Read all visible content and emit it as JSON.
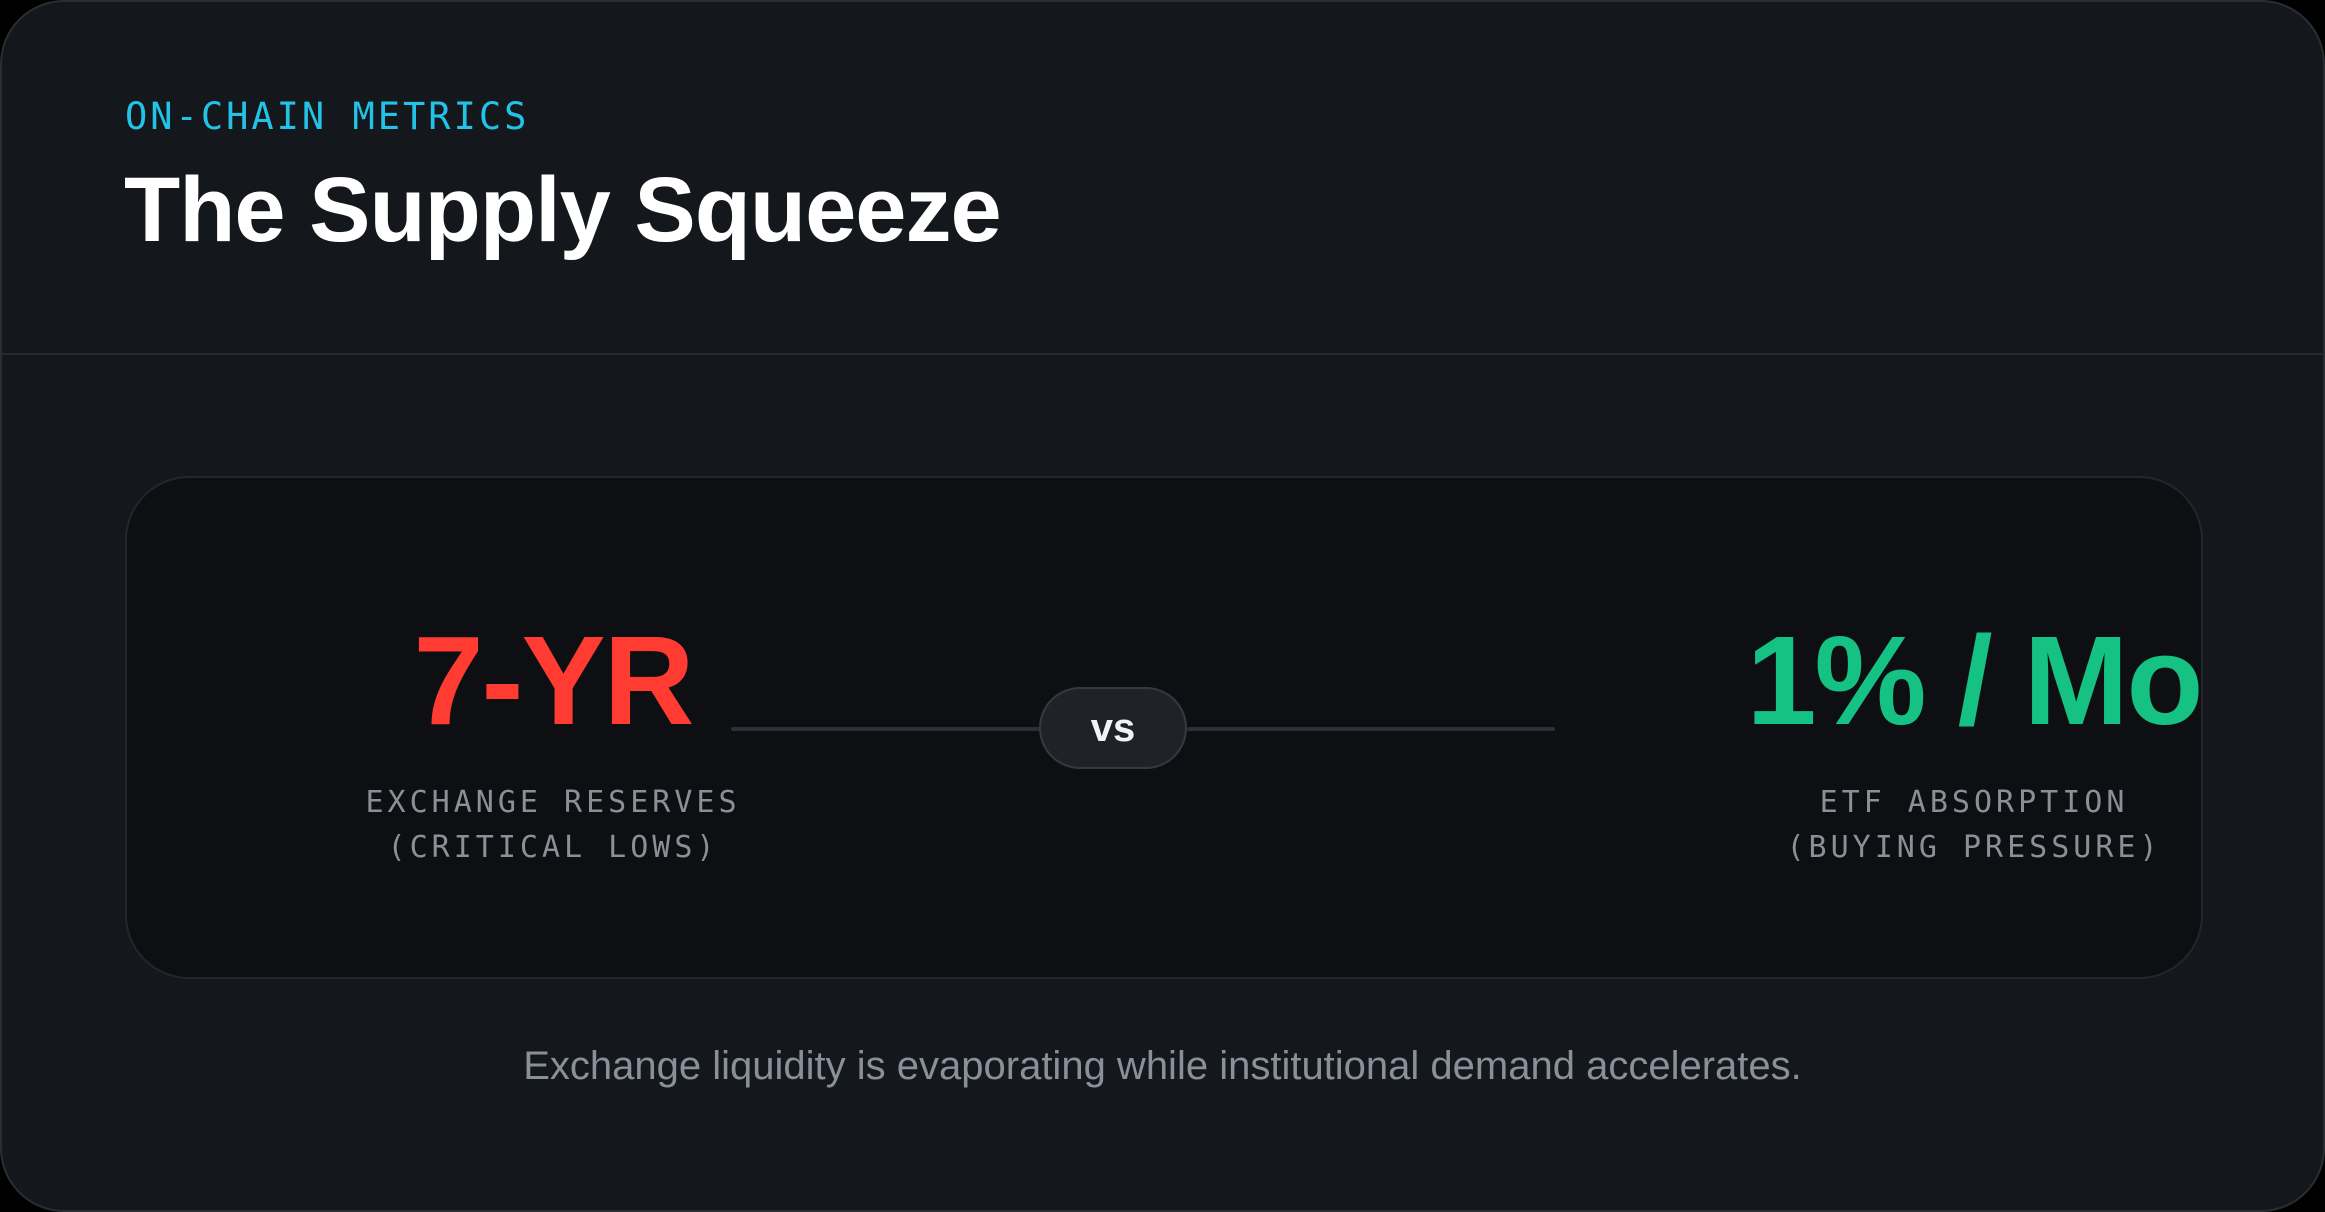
{
  "header": {
    "eyebrow": "ON-CHAIN METRICS",
    "title": "The Supply Squeeze"
  },
  "comparison": {
    "left": {
      "value": "7-YR",
      "label_line1": "EXCHANGE RESERVES",
      "label_line2": "(CRITICAL LOWS)",
      "color": "#ff3b32"
    },
    "separator": "vs",
    "right": {
      "value": "1% / Mo",
      "label_line1": "ETF ABSORPTION",
      "label_line2": "(BUYING PRESSURE)",
      "color": "#16c184"
    }
  },
  "footnote": "Exchange liquidity is evaporating while institutional demand accelerates.",
  "colors": {
    "accent": "#22c3e6",
    "background": "#14171b",
    "panel": "#0d0f12"
  }
}
